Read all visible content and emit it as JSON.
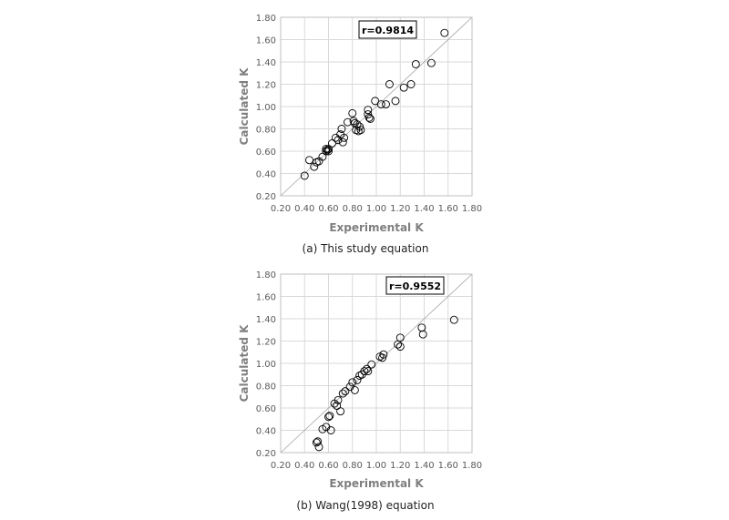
{
  "colors": {
    "grid": "#d9d9d9",
    "marker": "#000000",
    "ref_line": "#a6a6a6",
    "axis_text": "#595959",
    "axis_title": "#7f7f7f"
  },
  "chart_data": [
    {
      "type": "scatter",
      "caption": "(a) This study equation",
      "xlabel": "Experimental K",
      "ylabel": "Calculated K",
      "xlim": [
        0.2,
        1.8
      ],
      "ylim": [
        0.2,
        1.8
      ],
      "xticks": [
        "0.20",
        "0.40",
        "0.60",
        "0.80",
        "1.00",
        "1.20",
        "1.40",
        "1.60",
        "1.80"
      ],
      "yticks": [
        "0.20",
        "0.40",
        "0.60",
        "0.80",
        "1.00",
        "1.20",
        "1.40",
        "1.60",
        "1.80"
      ],
      "grid": true,
      "reference_line": "y = x",
      "annotation": "r=0.9814",
      "marker": "open-circle",
      "points": [
        [
          0.4,
          0.38
        ],
        [
          0.44,
          0.52
        ],
        [
          0.48,
          0.46
        ],
        [
          0.5,
          0.5
        ],
        [
          0.52,
          0.51
        ],
        [
          0.55,
          0.55
        ],
        [
          0.58,
          0.6
        ],
        [
          0.58,
          0.62
        ],
        [
          0.59,
          0.61
        ],
        [
          0.6,
          0.6
        ],
        [
          0.6,
          0.62
        ],
        [
          0.63,
          0.67
        ],
        [
          0.66,
          0.72
        ],
        [
          0.68,
          0.7
        ],
        [
          0.7,
          0.75
        ],
        [
          0.71,
          0.8
        ],
        [
          0.72,
          0.68
        ],
        [
          0.73,
          0.72
        ],
        [
          0.76,
          0.86
        ],
        [
          0.8,
          0.94
        ],
        [
          0.81,
          0.87
        ],
        [
          0.82,
          0.85
        ],
        [
          0.83,
          0.79
        ],
        [
          0.84,
          0.84
        ],
        [
          0.85,
          0.78
        ],
        [
          0.86,
          0.82
        ],
        [
          0.87,
          0.79
        ],
        [
          0.93,
          0.97
        ],
        [
          0.93,
          0.93
        ],
        [
          0.94,
          0.9
        ],
        [
          0.95,
          0.89
        ],
        [
          0.99,
          1.05
        ],
        [
          1.04,
          1.02
        ],
        [
          1.08,
          1.02
        ],
        [
          1.11,
          1.2
        ],
        [
          1.16,
          1.05
        ],
        [
          1.23,
          1.17
        ],
        [
          1.29,
          1.2
        ],
        [
          1.33,
          1.38
        ],
        [
          1.46,
          1.39
        ],
        [
          1.57,
          1.66
        ]
      ]
    },
    {
      "type": "scatter",
      "caption": "(b) Wang(1998) equation",
      "xlabel": "Experimental K",
      "ylabel": "Calculated K",
      "xlim": [
        0.2,
        1.8
      ],
      "ylim": [
        0.2,
        1.8
      ],
      "xticks": [
        "0.20",
        "0.40",
        "0.60",
        "0.80",
        "1.00",
        "1.20",
        "1.40",
        "1.60",
        "1.80"
      ],
      "yticks": [
        "0.20",
        "0.40",
        "0.60",
        "0.80",
        "1.00",
        "1.20",
        "1.40",
        "1.60",
        "1.80"
      ],
      "grid": true,
      "reference_line": "y = x",
      "annotation": "r=0.9552",
      "marker": "open-circle",
      "points": [
        [
          0.5,
          0.29
        ],
        [
          0.51,
          0.3
        ],
        [
          0.52,
          0.25
        ],
        [
          0.55,
          0.41
        ],
        [
          0.58,
          0.43
        ],
        [
          0.6,
          0.52
        ],
        [
          0.61,
          0.53
        ],
        [
          0.62,
          0.4
        ],
        [
          0.65,
          0.64
        ],
        [
          0.67,
          0.62
        ],
        [
          0.68,
          0.67
        ],
        [
          0.7,
          0.57
        ],
        [
          0.72,
          0.73
        ],
        [
          0.74,
          0.75
        ],
        [
          0.78,
          0.79
        ],
        [
          0.8,
          0.83
        ],
        [
          0.82,
          0.76
        ],
        [
          0.84,
          0.85
        ],
        [
          0.86,
          0.89
        ],
        [
          0.88,
          0.9
        ],
        [
          0.9,
          0.93
        ],
        [
          0.92,
          0.95
        ],
        [
          0.93,
          0.93
        ],
        [
          0.96,
          0.99
        ],
        [
          1.03,
          1.06
        ],
        [
          1.05,
          1.05
        ],
        [
          1.06,
          1.08
        ],
        [
          1.18,
          1.17
        ],
        [
          1.2,
          1.15
        ],
        [
          1.2,
          1.23
        ],
        [
          1.38,
          1.32
        ],
        [
          1.39,
          1.26
        ],
        [
          1.65,
          1.39
        ]
      ]
    }
  ]
}
